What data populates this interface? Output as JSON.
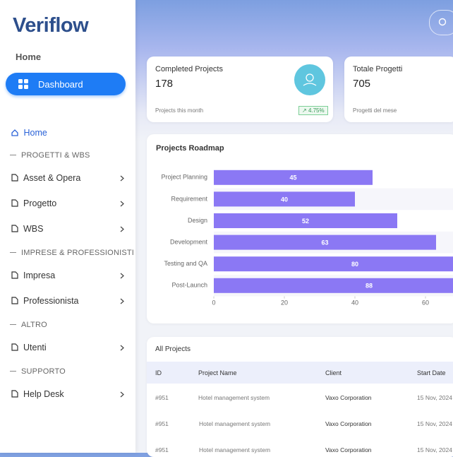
{
  "sidebar": {
    "logo": "Veriflow",
    "heading": "Home",
    "active": "Dashboard",
    "home": "Home",
    "sections": [
      {
        "title": "PROGETTI & WBS",
        "items": [
          "Asset & Opera",
          "Progetto",
          "WBS"
        ]
      },
      {
        "title": "IMPRESE & PROFESSIONISTI",
        "items": [
          "Impresa",
          "Professionista"
        ]
      },
      {
        "title": "ALTRO",
        "items": [
          "Utenti"
        ]
      },
      {
        "title": "SUPPORTO",
        "items": [
          "Help Desk"
        ]
      }
    ]
  },
  "cards": [
    {
      "title": "Completed Projects",
      "value": 178,
      "note": "Projects this month",
      "badge": "4.75%"
    },
    {
      "title": "Totale Progetti",
      "value": 705,
      "note": "Progetti del mese"
    }
  ],
  "chart_data": {
    "type": "hbar",
    "title": "Projects Roadmap",
    "categories": [
      "Project Planning",
      "Requirement",
      "Design",
      "Development",
      "Testing and QA",
      "Post-Launch"
    ],
    "values": [
      45,
      40,
      52,
      63,
      80,
      88
    ],
    "color": "#8b78f4",
    "xlim": [
      0,
      100
    ],
    "xticks": [
      0,
      20,
      40,
      60
    ]
  },
  "table": {
    "title": "All Projects",
    "columns": [
      "ID",
      "Project Name",
      "Client",
      "Start Date"
    ],
    "rows": [
      [
        "#951",
        "Hotel management system",
        "Vaxo Corporation",
        "15 Nov, 2024"
      ],
      [
        "#951",
        "Hotel management system",
        "Vaxo Corporation",
        "15 Nov, 2024"
      ],
      [
        "#951",
        "Hotel management system",
        "Vaxo Corporation",
        "15 Nov, 2024"
      ]
    ]
  }
}
